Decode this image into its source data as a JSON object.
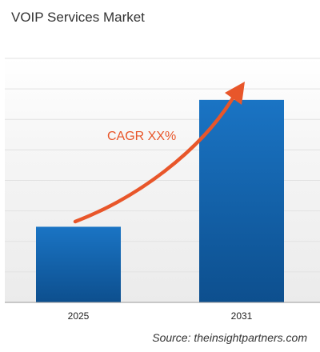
{
  "chart_data": {
    "type": "bar",
    "title": "VOIP Services Market",
    "categories": [
      "2025",
      "2031"
    ],
    "values": [
      31,
      83
    ],
    "ylim": [
      0,
      100
    ],
    "y_axis_labels_shown": false,
    "grid": true,
    "annotation": "CAGR XX%",
    "bar_color": "#1565b0",
    "arrow_color": "#e8562a",
    "source": "Source: theinsightpartners.com"
  }
}
